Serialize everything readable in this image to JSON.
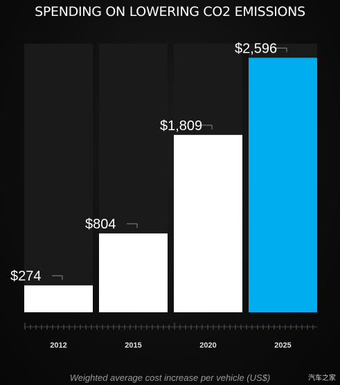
{
  "chart_data": {
    "type": "bar",
    "title": "SPENDING ON LOWERING CO2 EMISSIONS",
    "categories": [
      "2012",
      "2015",
      "2020",
      "2025"
    ],
    "values": [
      274,
      804,
      1809,
      2596
    ],
    "value_labels": [
      "$274",
      "$804",
      "$1,809",
      "$2,596"
    ],
    "xlabel": "Weighted average cost increase per vehicle (US$)",
    "ylabel": "",
    "ylim": [
      0,
      2740
    ],
    "bar_colors": [
      "#ffffff",
      "#ffffff",
      "#ffffff",
      "#00adef"
    ],
    "column_bg_color": "#1a1a1a",
    "grid": false,
    "legend": "none"
  },
  "watermark": "汽车之家"
}
